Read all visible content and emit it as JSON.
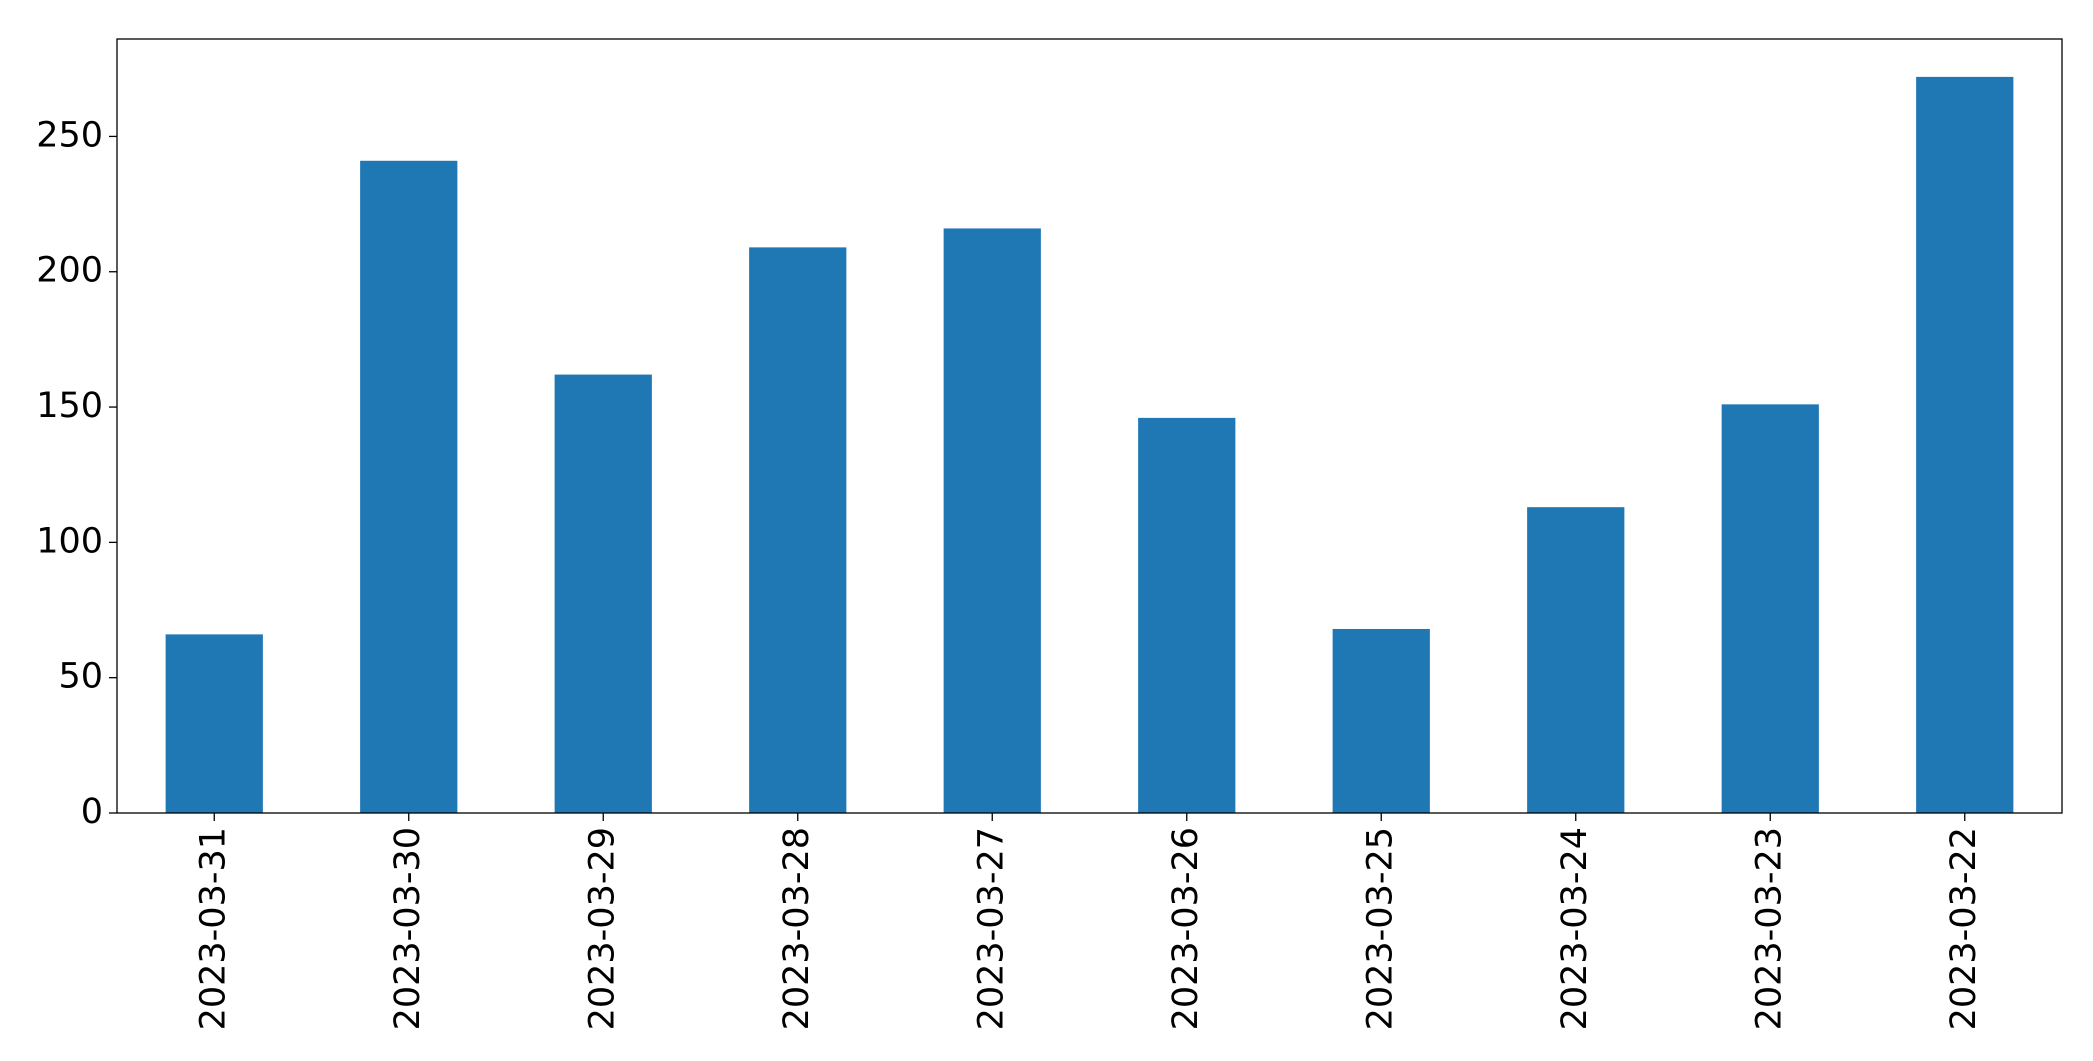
{
  "chart_data": {
    "type": "bar",
    "categories": [
      "2023-03-31",
      "2023-03-30",
      "2023-03-29",
      "2023-03-28",
      "2023-03-27",
      "2023-03-26",
      "2023-03-25",
      "2023-03-24",
      "2023-03-23",
      "2023-03-22"
    ],
    "values": [
      66,
      241,
      162,
      209,
      216,
      146,
      68,
      113,
      151,
      272
    ],
    "color": "#1f77b4",
    "ylim": [
      0,
      286
    ],
    "yticks": [
      0,
      50,
      100,
      150,
      200,
      250
    ],
    "grid": false
  }
}
